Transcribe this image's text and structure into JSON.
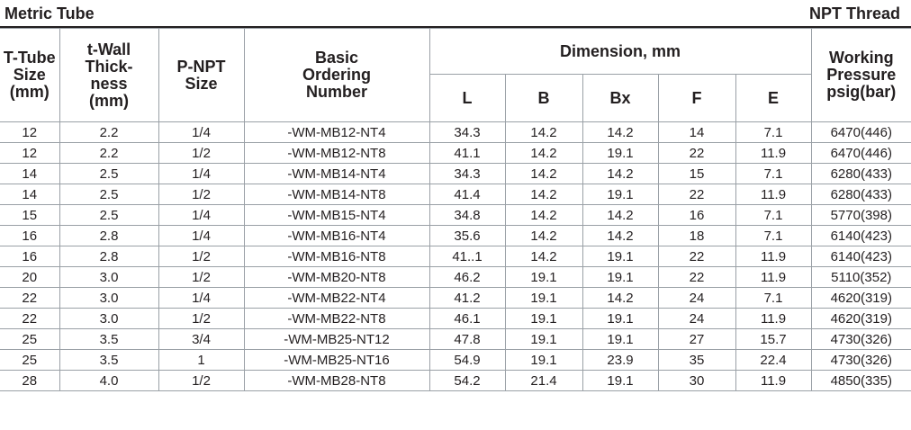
{
  "header": {
    "left_title": "Metric Tube",
    "right_title": "NPT Thread"
  },
  "columns": {
    "t_tube": [
      "T-Tube",
      "Size",
      "(mm)"
    ],
    "t_wall": [
      "t-Wall",
      "Thick-",
      "ness",
      "(mm)"
    ],
    "p_npt": [
      "P-NPT",
      "Size"
    ],
    "ordering": [
      "Basic",
      "Ordering",
      "Number"
    ],
    "dimension": "Dimension, mm",
    "dims": [
      "L",
      "B",
      "Bx",
      "F",
      "E"
    ],
    "pressure": [
      "Working",
      "Pressure",
      "psig(bar)"
    ]
  },
  "rows": [
    [
      "12",
      "2.2",
      "1/4",
      "-WM-MB12-NT4",
      "34.3",
      "14.2",
      "14.2",
      "14",
      "7.1",
      "6470(446)"
    ],
    [
      "12",
      "2.2",
      "1/2",
      "-WM-MB12-NT8",
      "41.1",
      "14.2",
      "19.1",
      "22",
      "11.9",
      "6470(446)"
    ],
    [
      "14",
      "2.5",
      "1/4",
      "-WM-MB14-NT4",
      "34.3",
      "14.2",
      "14.2",
      "15",
      "7.1",
      "6280(433)"
    ],
    [
      "14",
      "2.5",
      "1/2",
      "-WM-MB14-NT8",
      "41.4",
      "14.2",
      "19.1",
      "22",
      "11.9",
      "6280(433)"
    ],
    [
      "15",
      "2.5",
      "1/4",
      "-WM-MB15-NT4",
      "34.8",
      "14.2",
      "14.2",
      "16",
      "7.1",
      "5770(398)"
    ],
    [
      "16",
      "2.8",
      "1/4",
      "-WM-MB16-NT4",
      "35.6",
      "14.2",
      "14.2",
      "18",
      "7.1",
      "6140(423)"
    ],
    [
      "16",
      "2.8",
      "1/2",
      "-WM-MB16-NT8",
      "41..1",
      "14.2",
      "19.1",
      "22",
      "11.9",
      "6140(423)"
    ],
    [
      "20",
      "3.0",
      "1/2",
      "-WM-MB20-NT8",
      "46.2",
      "19.1",
      "19.1",
      "22",
      "11.9",
      "5110(352)"
    ],
    [
      "22",
      "3.0",
      "1/4",
      "-WM-MB22-NT4",
      "41.2",
      "19.1",
      "14.2",
      "24",
      "7.1",
      "4620(319)"
    ],
    [
      "22",
      "3.0",
      "1/2",
      "-WM-MB22-NT8",
      "46.1",
      "19.1",
      "19.1",
      "24",
      "11.9",
      "4620(319)"
    ],
    [
      "25",
      "3.5",
      "3/4",
      "-WM-MB25-NT12",
      "47.8",
      "19.1",
      "19.1",
      "27",
      "15.7",
      "4730(326)"
    ],
    [
      "25",
      "3.5",
      "1",
      "-WM-MB25-NT16",
      "54.9",
      "19.1",
      "23.9",
      "35",
      "22.4",
      "4730(326)"
    ],
    [
      "28",
      "4.0",
      "1/2",
      "-WM-MB28-NT8",
      "54.2",
      "21.4",
      "19.1",
      "30",
      "11.9",
      "4850(335)"
    ]
  ]
}
